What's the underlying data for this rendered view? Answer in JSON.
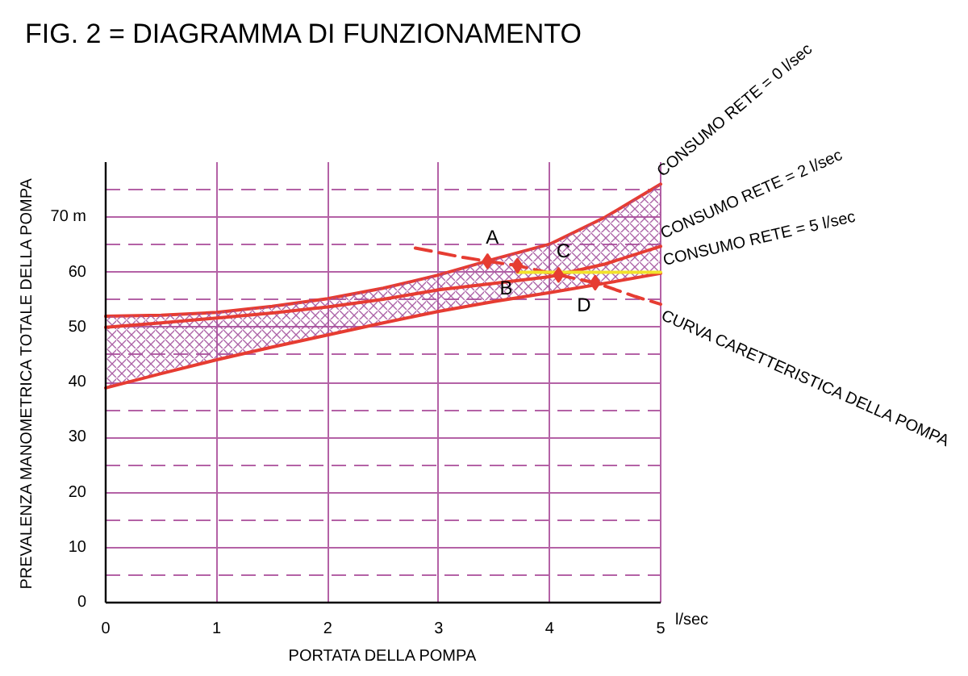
{
  "chart_data": {
    "type": "line",
    "title": "FIG. 2  =  DIAGRAMMA DI FUNZIONAMENTO",
    "xlabel": "PORTATA DELLA POMPA",
    "ylabel": "PREVALENZA MANOMETRICA TOTALE DELLA POMPA",
    "xlim": [
      0,
      5
    ],
    "ylim": [
      0,
      80
    ],
    "xticks": [
      0,
      1,
      2,
      3,
      4,
      5
    ],
    "yticks": [
      0,
      {
        "value": 5,
        "label": null
      },
      10,
      {
        "value": 15,
        "label": null
      },
      20,
      {
        "value": 25,
        "label": null
      },
      30,
      {
        "value": 35,
        "label": null
      },
      40,
      {
        "value": 45,
        "label": null
      },
      50,
      {
        "value": 55,
        "label": null
      },
      60,
      {
        "value": 65,
        "label": null
      },
      {
        "value": 70,
        "label": "70 m"
      },
      {
        "value": 75,
        "label": null
      }
    ],
    "grid": true,
    "series": [
      {
        "name": "CONSUMO RETE = 0 l/sec",
        "color": "#e63c32",
        "x": [
          0,
          0.5,
          1,
          1.5,
          2,
          2.5,
          3,
          3.5,
          4,
          4.5,
          5
        ],
        "values": [
          52.0,
          52.2,
          52.7,
          53.8,
          55.2,
          57.1,
          59.5,
          62.4,
          65.1,
          70.0,
          76.0
        ]
      },
      {
        "name": "CONSUMO RETE = 2 l/sec",
        "color": "#e63c32",
        "x": [
          0,
          0.5,
          1,
          1.5,
          2,
          2.5,
          3,
          3.5,
          4,
          4.5,
          5
        ],
        "values": [
          50.0,
          50.8,
          51.7,
          52.6,
          53.7,
          55.1,
          56.8,
          58.0,
          59.2,
          61.5,
          64.7
        ],
        "lower": [
          39.0,
          41.6,
          44.1,
          46.4,
          48.6,
          50.8,
          52.9,
          54.7,
          56.3,
          58.0,
          59.8
        ],
        "upper": [
          52.0,
          52.2,
          52.7,
          53.8,
          55.2,
          57.1,
          59.5,
          62.4,
          65.1,
          70.0,
          76.0
        ]
      },
      {
        "name": "CONSUMO RETE = 5 l/sec",
        "color": "#e63c32",
        "x": [
          0,
          0.5,
          1,
          1.5,
          2,
          2.5,
          3,
          3.5,
          4,
          4.5,
          5
        ],
        "values": [
          39.0,
          41.6,
          44.1,
          46.4,
          48.6,
          50.8,
          52.9,
          54.7,
          56.3,
          58.0,
          59.8
        ]
      },
      {
        "name": "CURVA CARETTERISTICA DELLA POMPA",
        "color": "#e63c32",
        "line_style": "dashed",
        "x": [
          2.79,
          3.22,
          3.44,
          3.71,
          4.08,
          4.41,
          4.77,
          5
        ],
        "values": [
          64.4,
          62.7,
          62.0,
          61.2,
          59.5,
          58.1,
          55.6,
          54.2
        ]
      },
      {
        "type": "line",
        "color": "#f2e22a",
        "x": [
          3.71,
          5
        ],
        "values": [
          60.0,
          60.0
        ]
      },
      {
        "type": "scatter",
        "color": "#e63c32",
        "marker": "diamond",
        "x": [
          3.44,
          3.71,
          4.08,
          4.41
        ],
        "values": [
          62.0,
          61.2,
          59.5,
          58.1
        ]
      }
    ],
    "annotations": [
      {
        "text": "A",
        "x": 3.44,
        "y": 62.0
      },
      {
        "text": "B",
        "x": 3.71,
        "y": 61.2
      },
      {
        "text": "C",
        "x": 4.08,
        "y": 59.5
      },
      {
        "text": "D",
        "x": 4.41,
        "y": 58.1
      },
      "l/sec"
    ]
  }
}
